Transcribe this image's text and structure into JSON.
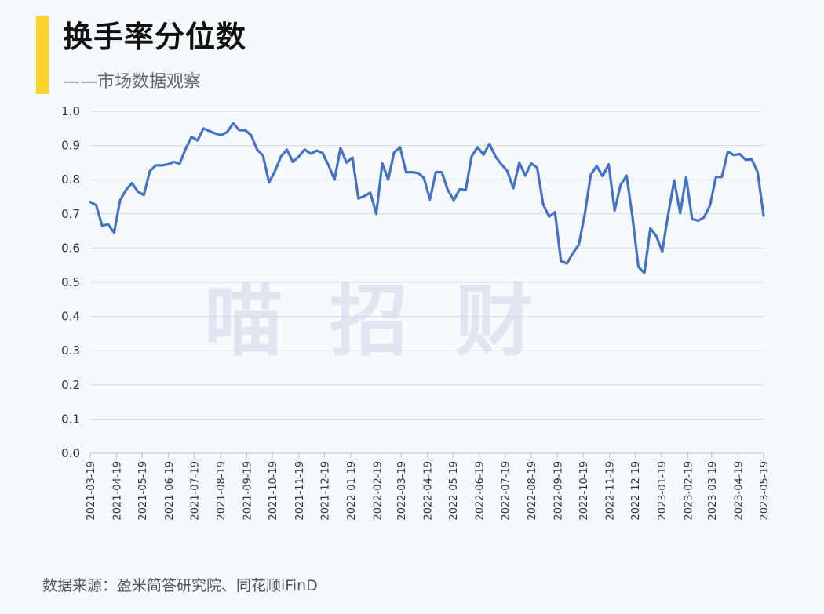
{
  "title": "换手率分位数",
  "subtitle": "——市场数据观察",
  "watermark": "喵招财",
  "source": "数据来源：盈米简答研究院、同花顺iFinD",
  "colors": {
    "accent": "#fdd42f",
    "line": "#4472c4",
    "grid": "#d9d9d9",
    "watermark": "#dfe6f2"
  },
  "chart_data": {
    "type": "line",
    "title": "换手率分位数",
    "xlabel": "",
    "ylabel": "",
    "ylim": [
      0,
      1.0
    ],
    "y_ticks": [
      "0.0",
      "0.1",
      "0.2",
      "0.3",
      "0.4",
      "0.5",
      "0.6",
      "0.7",
      "0.8",
      "0.9",
      "1.0"
    ],
    "x_ticks": [
      "2021-03-19",
      "2021-04-19",
      "2021-05-19",
      "2021-06-19",
      "2021-07-19",
      "2021-08-19",
      "2021-09-19",
      "2021-10-19",
      "2021-11-19",
      "2021-12-19",
      "2022-01-19",
      "2022-02-19",
      "2022-03-19",
      "2022-04-19",
      "2022-05-19",
      "2022-06-19",
      "2022-07-19",
      "2022-08-19",
      "2022-09-19",
      "2022-10-19",
      "2022-11-19",
      "2022-12-19",
      "2023-01-19",
      "2023-02-19",
      "2023-03-19",
      "2023-04-19",
      "2023-05-19"
    ],
    "grid": true,
    "legend": "none",
    "x_start": "2021-03-19",
    "x_end": "2023-05-19",
    "series": [
      {
        "values": [
          0.735,
          0.725,
          0.665,
          0.67,
          0.645,
          0.74,
          0.77,
          0.79,
          0.765,
          0.755,
          0.825,
          0.842,
          0.842,
          0.845,
          0.852,
          0.847,
          0.89,
          0.925,
          0.915,
          0.95,
          0.942,
          0.935,
          0.93,
          0.94,
          0.965,
          0.945,
          0.945,
          0.93,
          0.888,
          0.87,
          0.792,
          0.825,
          0.868,
          0.888,
          0.852,
          0.868,
          0.888,
          0.876,
          0.885,
          0.878,
          0.842,
          0.8,
          0.893,
          0.85,
          0.865,
          0.745,
          0.752,
          0.762,
          0.7,
          0.848,
          0.8,
          0.88,
          0.895,
          0.822,
          0.822,
          0.82,
          0.805,
          0.742,
          0.822,
          0.822,
          0.77,
          0.74,
          0.772,
          0.77,
          0.868,
          0.895,
          0.873,
          0.905,
          0.868,
          0.845,
          0.825,
          0.775,
          0.85,
          0.812,
          0.848,
          0.835,
          0.728,
          0.692,
          0.705,
          0.562,
          0.555,
          0.585,
          0.61,
          0.7,
          0.815,
          0.84,
          0.81,
          0.845,
          0.71,
          0.785,
          0.812,
          0.69,
          0.545,
          0.527,
          0.658,
          0.635,
          0.59,
          0.7,
          0.798,
          0.702,
          0.808,
          0.685,
          0.68,
          0.69,
          0.725,
          0.808,
          0.808,
          0.882,
          0.872,
          0.875,
          0.858,
          0.86,
          0.822,
          0.695
        ]
      }
    ]
  }
}
